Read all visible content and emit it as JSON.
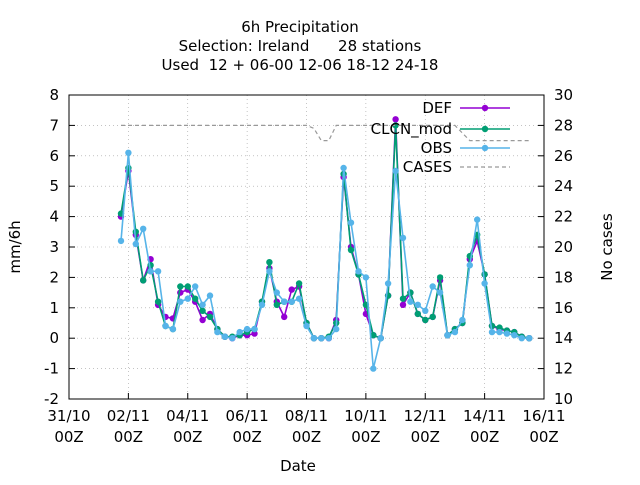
{
  "title_lines": [
    "6h Precipitation",
    "Selection: Ireland      28 stations",
    "Used  12 + 06-00 12-06 18-12 24-18"
  ],
  "xlabel": "Date",
  "ylabel": "mm/6h",
  "y2label": "No cases",
  "x_ticks": [
    {
      "line1": "31/10",
      "line2": "00Z",
      "day": 0
    },
    {
      "line1": "02/11",
      "line2": "00Z",
      "day": 2
    },
    {
      "line1": "04/11",
      "line2": "00Z",
      "day": 4
    },
    {
      "line1": "06/11",
      "line2": "00Z",
      "day": 6
    },
    {
      "line1": "08/11",
      "line2": "00Z",
      "day": 8
    },
    {
      "line1": "10/11",
      "line2": "00Z",
      "day": 10
    },
    {
      "line1": "12/11",
      "line2": "00Z",
      "day": 12
    },
    {
      "line1": "14/11",
      "line2": "00Z",
      "day": 14
    },
    {
      "line1": "16/11",
      "line2": "00Z",
      "day": 16
    }
  ],
  "y_ticks": [
    "-2",
    "-1",
    "0",
    "1",
    "2",
    "3",
    "4",
    "5",
    "6",
    "7",
    "8"
  ],
  "y2_ticks": [
    "10",
    "12",
    "14",
    "16",
    "18",
    "20",
    "22",
    "24",
    "26",
    "28",
    "30"
  ],
  "chart_data": {
    "type": "line",
    "xlim_days": [
      0,
      16
    ],
    "ylim": [
      -2,
      8
    ],
    "y2lim": [
      10,
      30
    ],
    "x": [
      1.75,
      2.0,
      2.25,
      2.5,
      2.75,
      3.0,
      3.25,
      3.5,
      3.75,
      4.0,
      4.25,
      4.5,
      4.75,
      5.0,
      5.25,
      5.5,
      5.75,
      6.0,
      6.25,
      6.5,
      6.75,
      7.0,
      7.25,
      7.5,
      7.75,
      8.0,
      8.25,
      8.5,
      8.75,
      9.0,
      9.25,
      9.5,
      9.75,
      10.0,
      10.25,
      10.5,
      10.75,
      11.0,
      11.25,
      11.5,
      11.75,
      12.0,
      12.25,
      12.5,
      12.75,
      13.0,
      13.25,
      13.5,
      13.75,
      14.0,
      14.25,
      14.5,
      14.75,
      15.0,
      15.25,
      15.5
    ],
    "series": [
      {
        "name": "DEF",
        "color": "#9400d3",
        "axis": "y1",
        "values": [
          4.0,
          5.5,
          3.4,
          1.9,
          2.6,
          1.1,
          0.7,
          0.65,
          1.5,
          1.6,
          1.2,
          0.6,
          0.8,
          0.3,
          0.05,
          0.0,
          0.1,
          0.1,
          0.15,
          1.2,
          2.3,
          1.2,
          0.7,
          1.6,
          1.7,
          0.5,
          0.0,
          0.0,
          0.0,
          0.6,
          5.3,
          3.0,
          2.1,
          0.8,
          0.1,
          0.0,
          1.4,
          7.2,
          1.1,
          1.5,
          0.8,
          0.6,
          0.7,
          1.9,
          0.1,
          0.3,
          0.5,
          2.6,
          3.2,
          2.1,
          0.4,
          0.3,
          0.25,
          0.2,
          0.05,
          0.0
        ]
      },
      {
        "name": "CLCN_mod",
        "color": "#009e73",
        "axis": "y1",
        "values": [
          4.1,
          5.6,
          3.5,
          1.9,
          2.4,
          1.2,
          0.4,
          0.3,
          1.7,
          1.7,
          1.3,
          0.9,
          0.7,
          0.3,
          0.05,
          0.05,
          0.1,
          0.2,
          0.3,
          1.2,
          2.5,
          1.1,
          1.2,
          1.2,
          1.8,
          0.5,
          0.0,
          0.0,
          0.05,
          0.5,
          5.4,
          2.9,
          2.1,
          1.1,
          0.1,
          0.0,
          1.4,
          7.0,
          1.3,
          1.5,
          0.8,
          0.6,
          0.7,
          2.0,
          0.1,
          0.3,
          0.5,
          2.7,
          3.4,
          2.1,
          0.4,
          0.35,
          0.25,
          0.2,
          0.05,
          0.0
        ]
      },
      {
        "name": "OBS",
        "color": "#56b4e9",
        "axis": "y1",
        "values": [
          3.2,
          6.1,
          3.1,
          3.6,
          2.2,
          2.2,
          0.4,
          0.3,
          1.2,
          1.3,
          1.7,
          1.1,
          1.4,
          0.2,
          0.05,
          0.0,
          0.2,
          0.3,
          0.3,
          1.1,
          2.2,
          1.5,
          1.2,
          1.2,
          1.3,
          0.4,
          0.0,
          0.0,
          0.0,
          0.3,
          5.6,
          3.8,
          2.2,
          2.0,
          -1.0,
          0.0,
          1.8,
          5.5,
          3.3,
          1.2,
          1.1,
          0.9,
          1.7,
          1.5,
          0.1,
          0.2,
          0.6,
          2.4,
          3.9,
          1.8,
          0.2,
          0.2,
          0.15,
          0.1,
          0.0,
          0.0
        ]
      },
      {
        "name": "CASES",
        "color": "#999999",
        "axis": "y2",
        "dashed": true,
        "x": [
          1.75,
          8.0,
          8.25,
          8.5,
          8.75,
          9.0,
          13.0,
          13.5,
          14.0,
          15.5
        ],
        "values": [
          28,
          28,
          27.8,
          27.0,
          27.0,
          28,
          28,
          27.0,
          27.0,
          27.0
        ]
      }
    ],
    "legend_position": "top-right",
    "grid": true
  }
}
